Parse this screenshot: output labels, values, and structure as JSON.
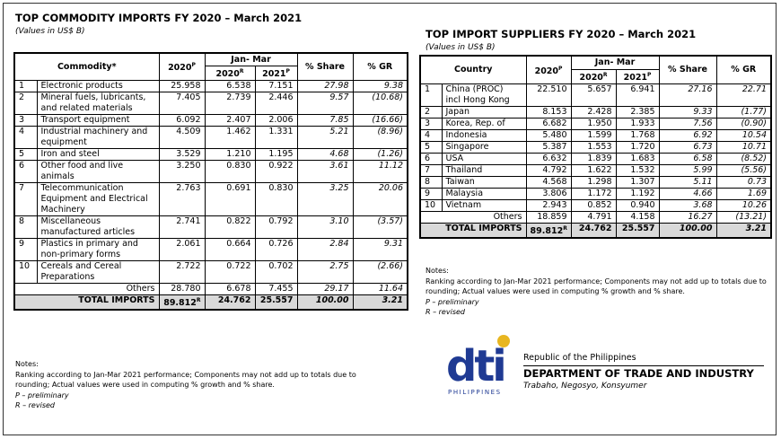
{
  "left": {
    "title": "TOP COMMODITY IMPORTS FY 2020 –  March 2021",
    "subtitle": "(Values in US$ B)",
    "headers": {
      "col1": "Commodity*",
      "col2a": "2020",
      "col2a_sup": "P",
      "group": "Jan- Mar",
      "col3": "2020",
      "col3_sup": "R",
      "col4": "2021",
      "col4_sup": "P",
      "col5": "% Share",
      "col6": "% GR"
    },
    "rows": [
      {
        "idx": "1",
        "name": [
          "Electronic products"
        ],
        "v2020": "25.958",
        "jm2020": "6.538",
        "jm2021": "7.151",
        "share": "27.98",
        "gr": "9.38"
      },
      {
        "idx": "2",
        "name": [
          "Mineral fuels, lubricants,",
          "and related materials"
        ],
        "v2020": "7.405",
        "jm2020": "2.739",
        "jm2021": "2.446",
        "share": "9.57",
        "gr": "(10.68)"
      },
      {
        "idx": "3",
        "name": [
          "Transport equipment"
        ],
        "v2020": "6.092",
        "jm2020": "2.407",
        "jm2021": "2.006",
        "share": "7.85",
        "gr": "(16.66)"
      },
      {
        "idx": "4",
        "name": [
          "Industrial machinery and",
          "equipment"
        ],
        "v2020": "4.509",
        "jm2020": "1.462",
        "jm2021": "1.331",
        "share": "5.21",
        "gr": "(8.96)"
      },
      {
        "idx": "5",
        "name": [
          "Iron and steel"
        ],
        "v2020": "3.529",
        "jm2020": "1.210",
        "jm2021": "1.195",
        "share": "4.68",
        "gr": "(1.26)"
      },
      {
        "idx": "6",
        "name": [
          "Other food and live",
          "animals"
        ],
        "v2020": "3.250",
        "jm2020": "0.830",
        "jm2021": "0.922",
        "share": "3.61",
        "gr": "11.12"
      },
      {
        "idx": "7",
        "name": [
          "Telecommunication",
          "Equipment and Electrical",
          "Machinery"
        ],
        "v2020": "2.763",
        "jm2020": "0.691",
        "jm2021": "0.830",
        "share": "3.25",
        "gr": "20.06"
      },
      {
        "idx": "8",
        "name": [
          "Miscellaneous",
          "manufactured articles"
        ],
        "v2020": "2.741",
        "jm2020": "0.822",
        "jm2021": "0.792",
        "share": "3.10",
        "gr": "(3.57)"
      },
      {
        "idx": "9",
        "name": [
          "Plastics in primary and",
          "non-primary forms"
        ],
        "v2020": "2.061",
        "jm2020": "0.664",
        "jm2021": "0.726",
        "share": "2.84",
        "gr": "9.31"
      },
      {
        "idx": "10",
        "name": [
          "Cereals and Cereal",
          "Preparations"
        ],
        "v2020": "2.722",
        "jm2020": "0.722",
        "jm2021": "0.702",
        "share": "2.75",
        "gr": "(2.66)"
      }
    ],
    "others": {
      "label": "Others",
      "v2020": "28.780",
      "jm2020": "6.678",
      "jm2021": "7.455",
      "share": "29.17",
      "gr": "11.64"
    },
    "total": {
      "label": "TOTAL IMPORTS",
      "v2020": "89.812",
      "v2020_sup": "R",
      "jm2020": "24.762",
      "jm2021": "25.557",
      "share": "100.00",
      "gr": "3.21"
    },
    "notes": {
      "head": "Notes:",
      "line1": "Ranking according to Jan-Mar 2021 performance; Components may not add up to totals due to",
      "line2": "rounding; Actual values were used in computing % growth and % share.",
      "p": "P – preliminary",
      "r": "R – revised"
    }
  },
  "right": {
    "title": "TOP IMPORT SUPPLIERS FY 2020 –  March 2021",
    "subtitle": "(Values in US$ B)",
    "headers": {
      "col1": "Country",
      "col2a": "2020",
      "col2a_sup": "P",
      "group": "Jan- Mar",
      "col3": "2020",
      "col3_sup": "R",
      "col4": "2021",
      "col4_sup": "P",
      "col5": "% Share",
      "col6": "% GR"
    },
    "rows": [
      {
        "idx": "1",
        "name": [
          "China (PROC)",
          "incl Hong Kong"
        ],
        "v2020": "22.510",
        "jm2020": "5.657",
        "jm2021": "6.941",
        "share": "27.16",
        "gr": "22.71"
      },
      {
        "idx": "2",
        "name": [
          "Japan"
        ],
        "v2020": "8.153",
        "jm2020": "2.428",
        "jm2021": "2.385",
        "share": "9.33",
        "gr": "(1.77)"
      },
      {
        "idx": "3",
        "name": [
          "Korea, Rep. of"
        ],
        "v2020": "6.682",
        "jm2020": "1.950",
        "jm2021": "1.933",
        "share": "7.56",
        "gr": "(0.90)"
      },
      {
        "idx": "4",
        "name": [
          "Indonesia"
        ],
        "v2020": "5.480",
        "jm2020": "1.599",
        "jm2021": "1.768",
        "share": "6.92",
        "gr": "10.54"
      },
      {
        "idx": "5",
        "name": [
          "Singapore"
        ],
        "v2020": "5.387",
        "jm2020": "1.553",
        "jm2021": "1.720",
        "share": "6.73",
        "gr": "10.71"
      },
      {
        "idx": "6",
        "name": [
          "USA"
        ],
        "v2020": "6.632",
        "jm2020": "1.839",
        "jm2021": "1.683",
        "share": "6.58",
        "gr": "(8.52)"
      },
      {
        "idx": "7",
        "name": [
          "Thailand"
        ],
        "v2020": "4.792",
        "jm2020": "1.622",
        "jm2021": "1.532",
        "share": "5.99",
        "gr": "(5.56)"
      },
      {
        "idx": "8",
        "name": [
          "Taiwan"
        ],
        "v2020": "4.568",
        "jm2020": "1.298",
        "jm2021": "1.307",
        "share": "5.11",
        "gr": "0.73"
      },
      {
        "idx": "9",
        "name": [
          "Malaysia"
        ],
        "v2020": "3.806",
        "jm2020": "1.172",
        "jm2021": "1.192",
        "share": "4.66",
        "gr": "1.69"
      },
      {
        "idx": "10",
        "name": [
          "Vietnam"
        ],
        "v2020": "2.943",
        "jm2020": "0.852",
        "jm2021": "0.940",
        "share": "3.68",
        "gr": "10.26"
      }
    ],
    "others": {
      "label": "Others",
      "v2020": "18.859",
      "jm2020": "4.791",
      "jm2021": "4.158",
      "share": "16.27",
      "gr": "(13.21)"
    },
    "total": {
      "label": "TOTAL IMPORTS",
      "v2020": "89.812",
      "v2020_sup": "R",
      "jm2020": "24.762",
      "jm2021": "25.557",
      "share": "100.00",
      "gr": "3.21"
    },
    "notes": {
      "head": "Notes:",
      "line1": "Ranking according to Jan-Mar 2021 performance; Components may not add up to totals due to",
      "line2": "rounding; Actual values were used in computing % growth and % share.",
      "p": "P – preliminary",
      "r": "R – revised"
    }
  },
  "dept": {
    "logo_text": "dti",
    "logo_sub": "PHILIPPINES",
    "republic": "Republic of the Philippines",
    "name": "DEPARTMENT OF TRADE AND INDUSTRY",
    "tagline": "Trabaho, Negosyo, Konsyumer",
    "colors": {
      "blue": "#1f3a93",
      "gold": "#e8b620"
    }
  }
}
